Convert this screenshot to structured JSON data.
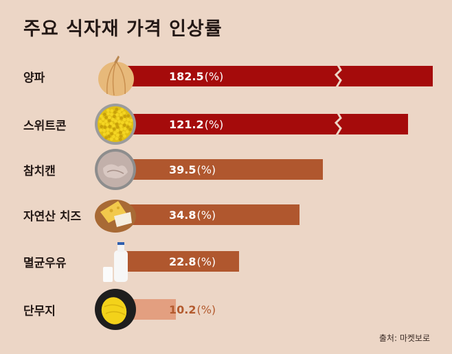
{
  "title": "주요 식자재 가격 인상률",
  "source": "출처: 마켓보로",
  "colors": {
    "background": "#ecd6c6",
    "high": "#a50b0b",
    "mid": "#b0572e",
    "low": "#e39f80"
  },
  "chart_data": {
    "type": "bar",
    "orientation": "horizontal",
    "title": "주요 식자재 가격 인상률",
    "unit": "(%)",
    "categories": [
      "양파",
      "스위트콘",
      "참치캔",
      "자연산 치즈",
      "멸균우유",
      "단무지"
    ],
    "values": [
      182.5,
      121.2,
      39.5,
      34.8,
      22.8,
      10.2
    ],
    "value_labels": [
      "182.5",
      "121.2",
      "39.5",
      "34.8",
      "22.8",
      "10.2"
    ],
    "icons": [
      "onion-icon",
      "sweetcorn-icon",
      "canned-tuna-icon",
      "cheese-icon",
      "milk-icon",
      "pickled-radish-icon"
    ],
    "broken_axis_bars": [
      0,
      1
    ]
  }
}
